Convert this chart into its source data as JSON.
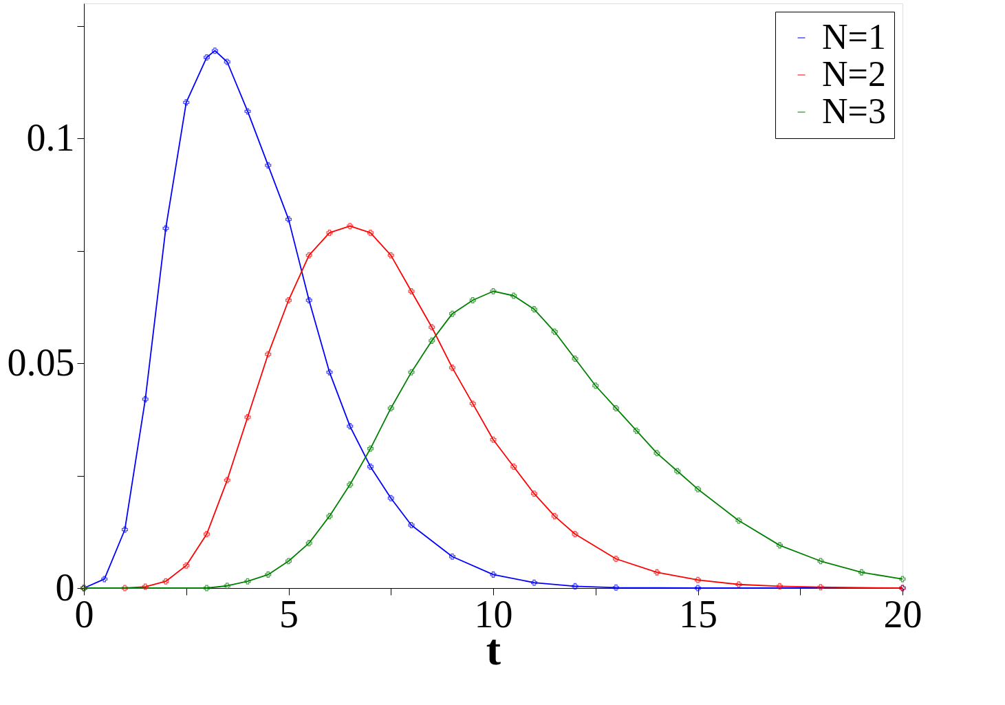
{
  "chart_data": {
    "type": "line",
    "xlabel": "t",
    "marker": "cross",
    "line_style": "solid",
    "legend": "top right",
    "grid": false,
    "xlim": [
      0,
      20
    ],
    "ylim": [
      0,
      0.13
    ],
    "xticks": [
      0,
      {
        "value": 2.5,
        "label": null
      },
      5,
      {
        "value": 7.5,
        "label": null
      },
      10,
      {
        "value": 12.5,
        "label": null
      },
      15,
      {
        "value": 17.5,
        "label": null
      },
      20
    ],
    "yticks": [
      0,
      {
        "value": 0.025,
        "label": null
      },
      0.05,
      {
        "value": 0.075,
        "label": null
      },
      0.1,
      {
        "value": 0.125,
        "label": null
      }
    ],
    "series": [
      {
        "name": "N=1",
        "color": "#0000ff",
        "x": [
          0,
          0.5,
          1,
          1.5,
          2,
          2.5,
          3,
          3.2,
          3.5,
          4,
          4.5,
          5,
          5.5,
          6,
          6.5,
          7,
          7.5,
          8,
          9,
          10,
          11,
          12,
          13,
          15,
          20
        ],
        "values": [
          0,
          0.002,
          0.013,
          0.042,
          0.08,
          0.108,
          0.118,
          0.1195,
          0.117,
          0.106,
          0.094,
          0.082,
          0.064,
          0.048,
          0.036,
          0.027,
          0.02,
          0.014,
          0.007,
          0.003,
          0.0012,
          0.0004,
          0.0001,
          0,
          0
        ]
      },
      {
        "name": "N=2",
        "color": "#ff0000",
        "x": [
          0,
          1,
          1.5,
          2,
          2.5,
          3,
          3.5,
          4,
          4.5,
          5,
          5.5,
          6,
          6.5,
          7,
          7.5,
          8,
          8.5,
          9,
          9.5,
          10,
          10.5,
          11,
          11.5,
          12,
          13,
          14,
          15,
          16,
          17,
          18,
          20
        ],
        "values": [
          0,
          0,
          0.0003,
          0.0015,
          0.005,
          0.012,
          0.024,
          0.038,
          0.052,
          0.064,
          0.074,
          0.079,
          0.0805,
          0.079,
          0.074,
          0.066,
          0.058,
          0.049,
          0.041,
          0.033,
          0.027,
          0.021,
          0.016,
          0.012,
          0.0065,
          0.0035,
          0.0018,
          0.0008,
          0.0004,
          0.0002,
          0
        ]
      },
      {
        "name": "N=3",
        "color": "#008000",
        "x": [
          0,
          3,
          3.5,
          4,
          4.5,
          5,
          5.5,
          6,
          6.5,
          7,
          7.5,
          8,
          8.5,
          9,
          9.5,
          10,
          10.5,
          11,
          11.5,
          12,
          12.5,
          13,
          13.5,
          14,
          14.5,
          15,
          16,
          17,
          18,
          19,
          20
        ],
        "values": [
          0,
          0,
          0.0005,
          0.0015,
          0.003,
          0.006,
          0.01,
          0.016,
          0.023,
          0.031,
          0.04,
          0.048,
          0.055,
          0.061,
          0.064,
          0.066,
          0.065,
          0.062,
          0.057,
          0.051,
          0.045,
          0.04,
          0.035,
          0.03,
          0.026,
          0.022,
          0.015,
          0.0095,
          0.006,
          0.0035,
          0.002
        ]
      }
    ]
  }
}
